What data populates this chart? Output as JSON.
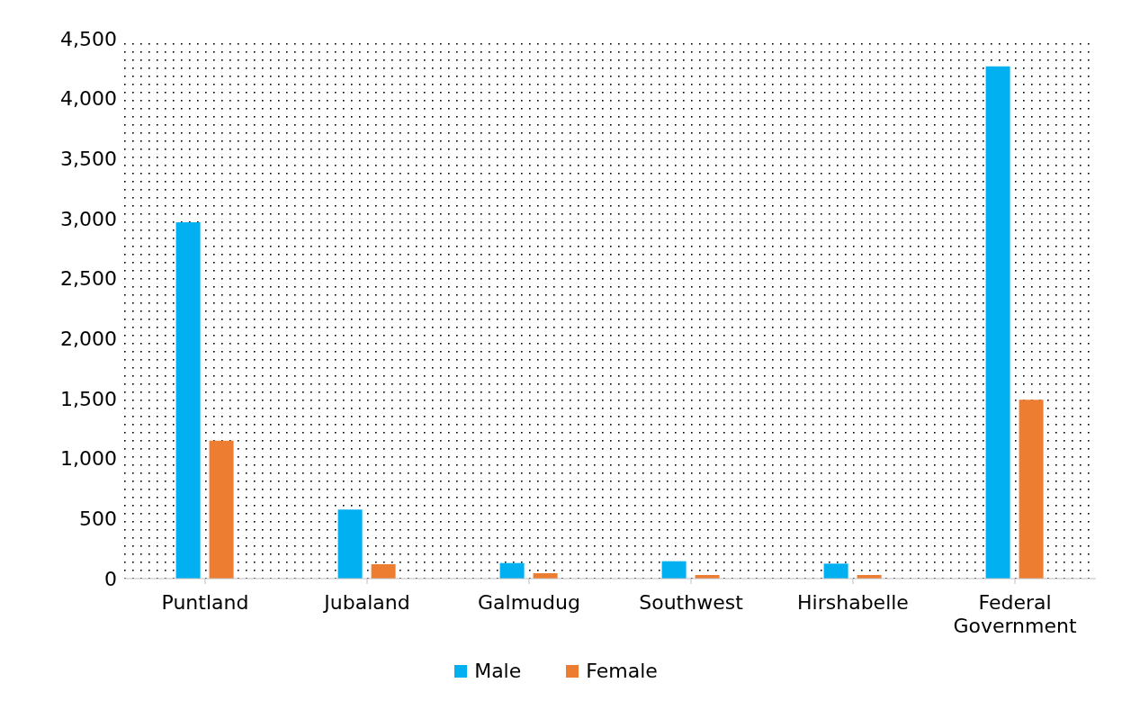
{
  "chart_data": {
    "type": "bar",
    "categories": [
      "Puntland",
      "Jubaland",
      "Galmudug",
      "Southwest",
      "Hirshabelle",
      "Federal Government"
    ],
    "series": [
      {
        "name": "Male",
        "color": "#00b0f0",
        "values": [
          2970,
          575,
          130,
          145,
          125,
          4270
        ]
      },
      {
        "name": "Female",
        "color": "#ed7d31",
        "values": [
          1150,
          120,
          45,
          30,
          30,
          1490
        ]
      }
    ],
    "ylim": [
      0,
      4500
    ],
    "yticks": [
      0,
      500,
      {
        "value": 1000,
        "label": "1,000"
      },
      {
        "value": 1500,
        "label": "1,500"
      },
      {
        "value": 2000,
        "label": "2,000"
      },
      {
        "value": 2500,
        "label": "2,500"
      },
      {
        "value": 3000,
        "label": "3,000"
      },
      {
        "value": 3500,
        "label": "3,500"
      },
      {
        "value": 4000,
        "label": "4,000"
      },
      {
        "value": 4500,
        "label": "4,500"
      }
    ],
    "legend": "bottom"
  }
}
